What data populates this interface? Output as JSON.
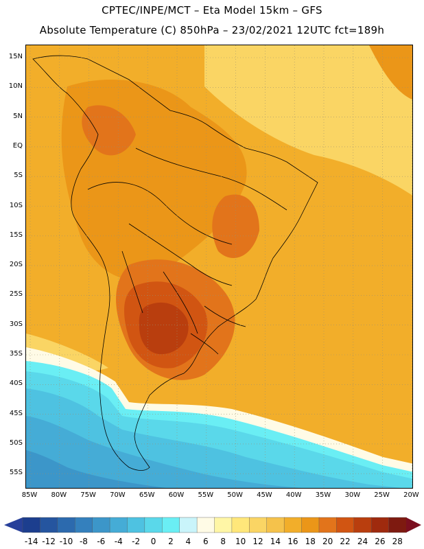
{
  "title_line1": "CPTEC/INPE/MCT –  Eta Model 15km – GFS",
  "title_line2": "Absolute Temperature (C) 850hPa – 23/02/2021 12UTC fct=189h",
  "lat_labels": [
    "15N",
    "10N",
    "5N",
    "EQ",
    "5S",
    "10S",
    "15S",
    "20S",
    "25S",
    "30S",
    "35S",
    "40S",
    "45S",
    "50S",
    "55S"
  ],
  "lon_labels": [
    "85W",
    "80W",
    "75W",
    "70W",
    "65W",
    "60W",
    "55W",
    "50W",
    "45W",
    "40W",
    "35W",
    "30W",
    "25W",
    "20W"
  ],
  "colorbar": {
    "labels": [
      "-14",
      "-12",
      "-10",
      "-8",
      "-6",
      "-4",
      "-2",
      "0",
      "2",
      "4",
      "6",
      "8",
      "10",
      "12",
      "14",
      "16",
      "18",
      "20",
      "22",
      "24",
      "26",
      "28"
    ],
    "colors": [
      "#1c3e8e",
      "#25559f",
      "#2c6aae",
      "#3480bd",
      "#3c96c9",
      "#45acd6",
      "#4ec2e1",
      "#5ad8ea",
      "#6aeef4",
      "#c9f4fa",
      "#fffbe6",
      "#fff6a6",
      "#ffe77a",
      "#fad564",
      "#f5c24b",
      "#f2ae2a",
      "#eb9618",
      "#e2741b",
      "#d15512",
      "#b93e0e",
      "#9f2a0e",
      "#7e1a10"
    ],
    "low_color": "#27409a",
    "high_color": "#7b0f1f"
  },
  "field_colors": {
    "base": "#f2ae2a",
    "warm": "#eb9618",
    "hot": "#e2741b",
    "hotter": "#d15512",
    "hottest": "#b93e0e",
    "light_yellow": "#fad564",
    "pale": "#fffbe6",
    "cyan": "#6aeef4",
    "sky": "#5ad8ea",
    "blue1": "#4ec2e1",
    "blue2": "#45acd6",
    "blue3": "#3c96c9"
  }
}
